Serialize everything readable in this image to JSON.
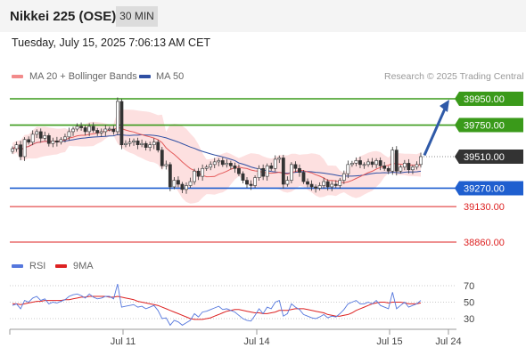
{
  "header": {
    "title": "Nikkei 225 (OSE)",
    "timeframe": "30 MIN"
  },
  "timestamp": "Tuesday, July 15, 2025 7:06:13 AM CET",
  "legend": {
    "ma20": {
      "label": "MA 20 + Bollinger Bands",
      "color": "#f28b8b"
    },
    "ma50": {
      "label": "MA 50",
      "color": "#2f4fa3"
    },
    "copyright": "Research © 2025 Trading Central"
  },
  "rsi_legend": {
    "rsi": {
      "label": "RSI",
      "color": "#5577dd"
    },
    "ma": {
      "label": "9MA",
      "color": "#dd2222"
    }
  },
  "chart_data": [
    {
      "type": "candlestick",
      "title": "",
      "x_ticks": [
        "Jul 11",
        "Jul 14",
        "Jul 15",
        "Jul 24"
      ],
      "y_range": [
        38800,
        40000
      ],
      "last_price": "39510.00",
      "levels": [
        {
          "label": "39950.00",
          "value": 39950,
          "style": "resistance",
          "color": "#3a9a1a"
        },
        {
          "label": "39750.00",
          "value": 39750,
          "style": "resistance",
          "color": "#3a9a1a"
        },
        {
          "label": "39510.00",
          "value": 39510,
          "style": "last",
          "color": "#333333"
        },
        {
          "label": "39270.00",
          "value": 39270,
          "style": "pivot",
          "color": "#1f5fcf"
        },
        {
          "label": "39130.00",
          "value": 39130,
          "style": "support",
          "color": "#dd2222"
        },
        {
          "label": "38860.00",
          "value": 38860,
          "style": "support",
          "color": "#dd2222"
        }
      ],
      "projection": {
        "from": 39520,
        "to": 39950
      },
      "close_series": [
        39570,
        39600,
        39510,
        39640,
        39620,
        39680,
        39700,
        39650,
        39670,
        39610,
        39630,
        39620,
        39640,
        39660,
        39700,
        39720,
        39740,
        39730,
        39700,
        39740,
        39710,
        39690,
        39700,
        39720,
        39720,
        39700,
        39930,
        39600,
        39610,
        39620,
        39630,
        39600,
        39610,
        39580,
        39600,
        39620,
        39560,
        39440,
        39450,
        39280,
        39330,
        39300,
        39260,
        39290,
        39320,
        39400,
        39360,
        39420,
        39430,
        39450,
        39470,
        39480,
        39450,
        39460,
        39440,
        39420,
        39380,
        39330,
        39300,
        39290,
        39350,
        39420,
        39360,
        39440,
        39420,
        39490,
        39500,
        39300,
        39330,
        39450,
        39420,
        39390,
        39320,
        39300,
        39280,
        39270,
        39290,
        39320,
        39280,
        39300,
        39290,
        39330,
        39380,
        39450,
        39460,
        39480,
        39450,
        39450,
        39470,
        39450,
        39480,
        39440,
        39420,
        39400,
        39560,
        39400,
        39430,
        39460,
        39410,
        39430,
        39450,
        39510
      ]
    },
    {
      "type": "line",
      "title": "RSI",
      "y_range": [
        20,
        80
      ],
      "y_ticks": [
        70,
        50,
        30
      ],
      "series": [
        {
          "name": "RSI",
          "values": [
            46,
            48,
            42,
            52,
            50,
            55,
            57,
            52,
            54,
            48,
            50,
            49,
            51,
            53,
            57,
            59,
            60,
            58,
            55,
            60,
            56,
            54,
            55,
            57,
            57,
            54,
            72,
            44,
            45,
            46,
            47,
            44,
            45,
            42,
            44,
            46,
            40,
            30,
            31,
            22,
            28,
            26,
            22,
            25,
            28,
            36,
            32,
            38,
            39,
            41,
            43,
            45,
            41,
            42,
            40,
            38,
            34,
            30,
            28,
            27,
            34,
            42,
            36,
            44,
            42,
            50,
            52,
            33,
            36,
            48,
            44,
            41,
            35,
            33,
            31,
            30,
            32,
            35,
            31,
            33,
            32,
            36,
            41,
            48,
            50,
            52,
            48,
            48,
            50,
            48,
            52,
            46,
            44,
            42,
            62,
            42,
            46,
            50,
            44,
            46,
            48,
            52
          ]
        },
        {
          "name": "9MA",
          "values": [
            48,
            48,
            47,
            48,
            49,
            50,
            51,
            51,
            52,
            52,
            52,
            52,
            52,
            53,
            53,
            54,
            55,
            56,
            56,
            57,
            57,
            57,
            57,
            57,
            56,
            56,
            57,
            56,
            55,
            54,
            53,
            51,
            50,
            49,
            48,
            47,
            46,
            44,
            42,
            40,
            38,
            36,
            34,
            32,
            30,
            29,
            29,
            29,
            30,
            31,
            33,
            35,
            37,
            39,
            40,
            41,
            41,
            40,
            39,
            38,
            37,
            37,
            36,
            36,
            37,
            38,
            40,
            40,
            40,
            41,
            42,
            42,
            42,
            41,
            40,
            39,
            38,
            37,
            35,
            34,
            33,
            33,
            34,
            35,
            37,
            40,
            42,
            44,
            46,
            48,
            49,
            50,
            50,
            49,
            50,
            50,
            50,
            49,
            48,
            48,
            48,
            49
          ]
        }
      ]
    }
  ]
}
